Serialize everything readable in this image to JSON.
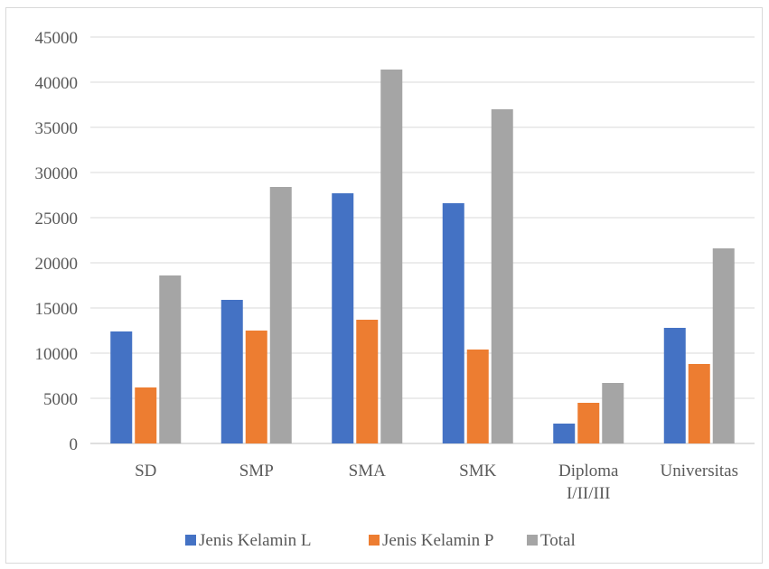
{
  "chart_data": {
    "type": "bar",
    "categories": [
      [
        "SD"
      ],
      [
        "SMP"
      ],
      [
        "SMA"
      ],
      [
        "SMK"
      ],
      [
        "Diploma",
        "I/II/III"
      ],
      [
        "Universitas"
      ]
    ],
    "series": [
      {
        "name": "Jenis Kelamin L",
        "color": "#4472c4",
        "values": [
          12400,
          15900,
          27700,
          26600,
          2200,
          12800
        ]
      },
      {
        "name": "Jenis Kelamin P",
        "color": "#ed7d31",
        "values": [
          6200,
          12500,
          13700,
          10400,
          4500,
          8800
        ]
      },
      {
        "name": "Total",
        "color": "#a5a5a5",
        "values": [
          18600,
          28400,
          41400,
          37000,
          6700,
          21600
        ]
      }
    ],
    "yticks": [
      "0",
      "5000",
      "10000",
      "15000",
      "20000",
      "25000",
      "30000",
      "35000",
      "40000",
      "45000"
    ],
    "ylim": [
      0,
      45000
    ],
    "grid": true,
    "legend": "bottom"
  }
}
